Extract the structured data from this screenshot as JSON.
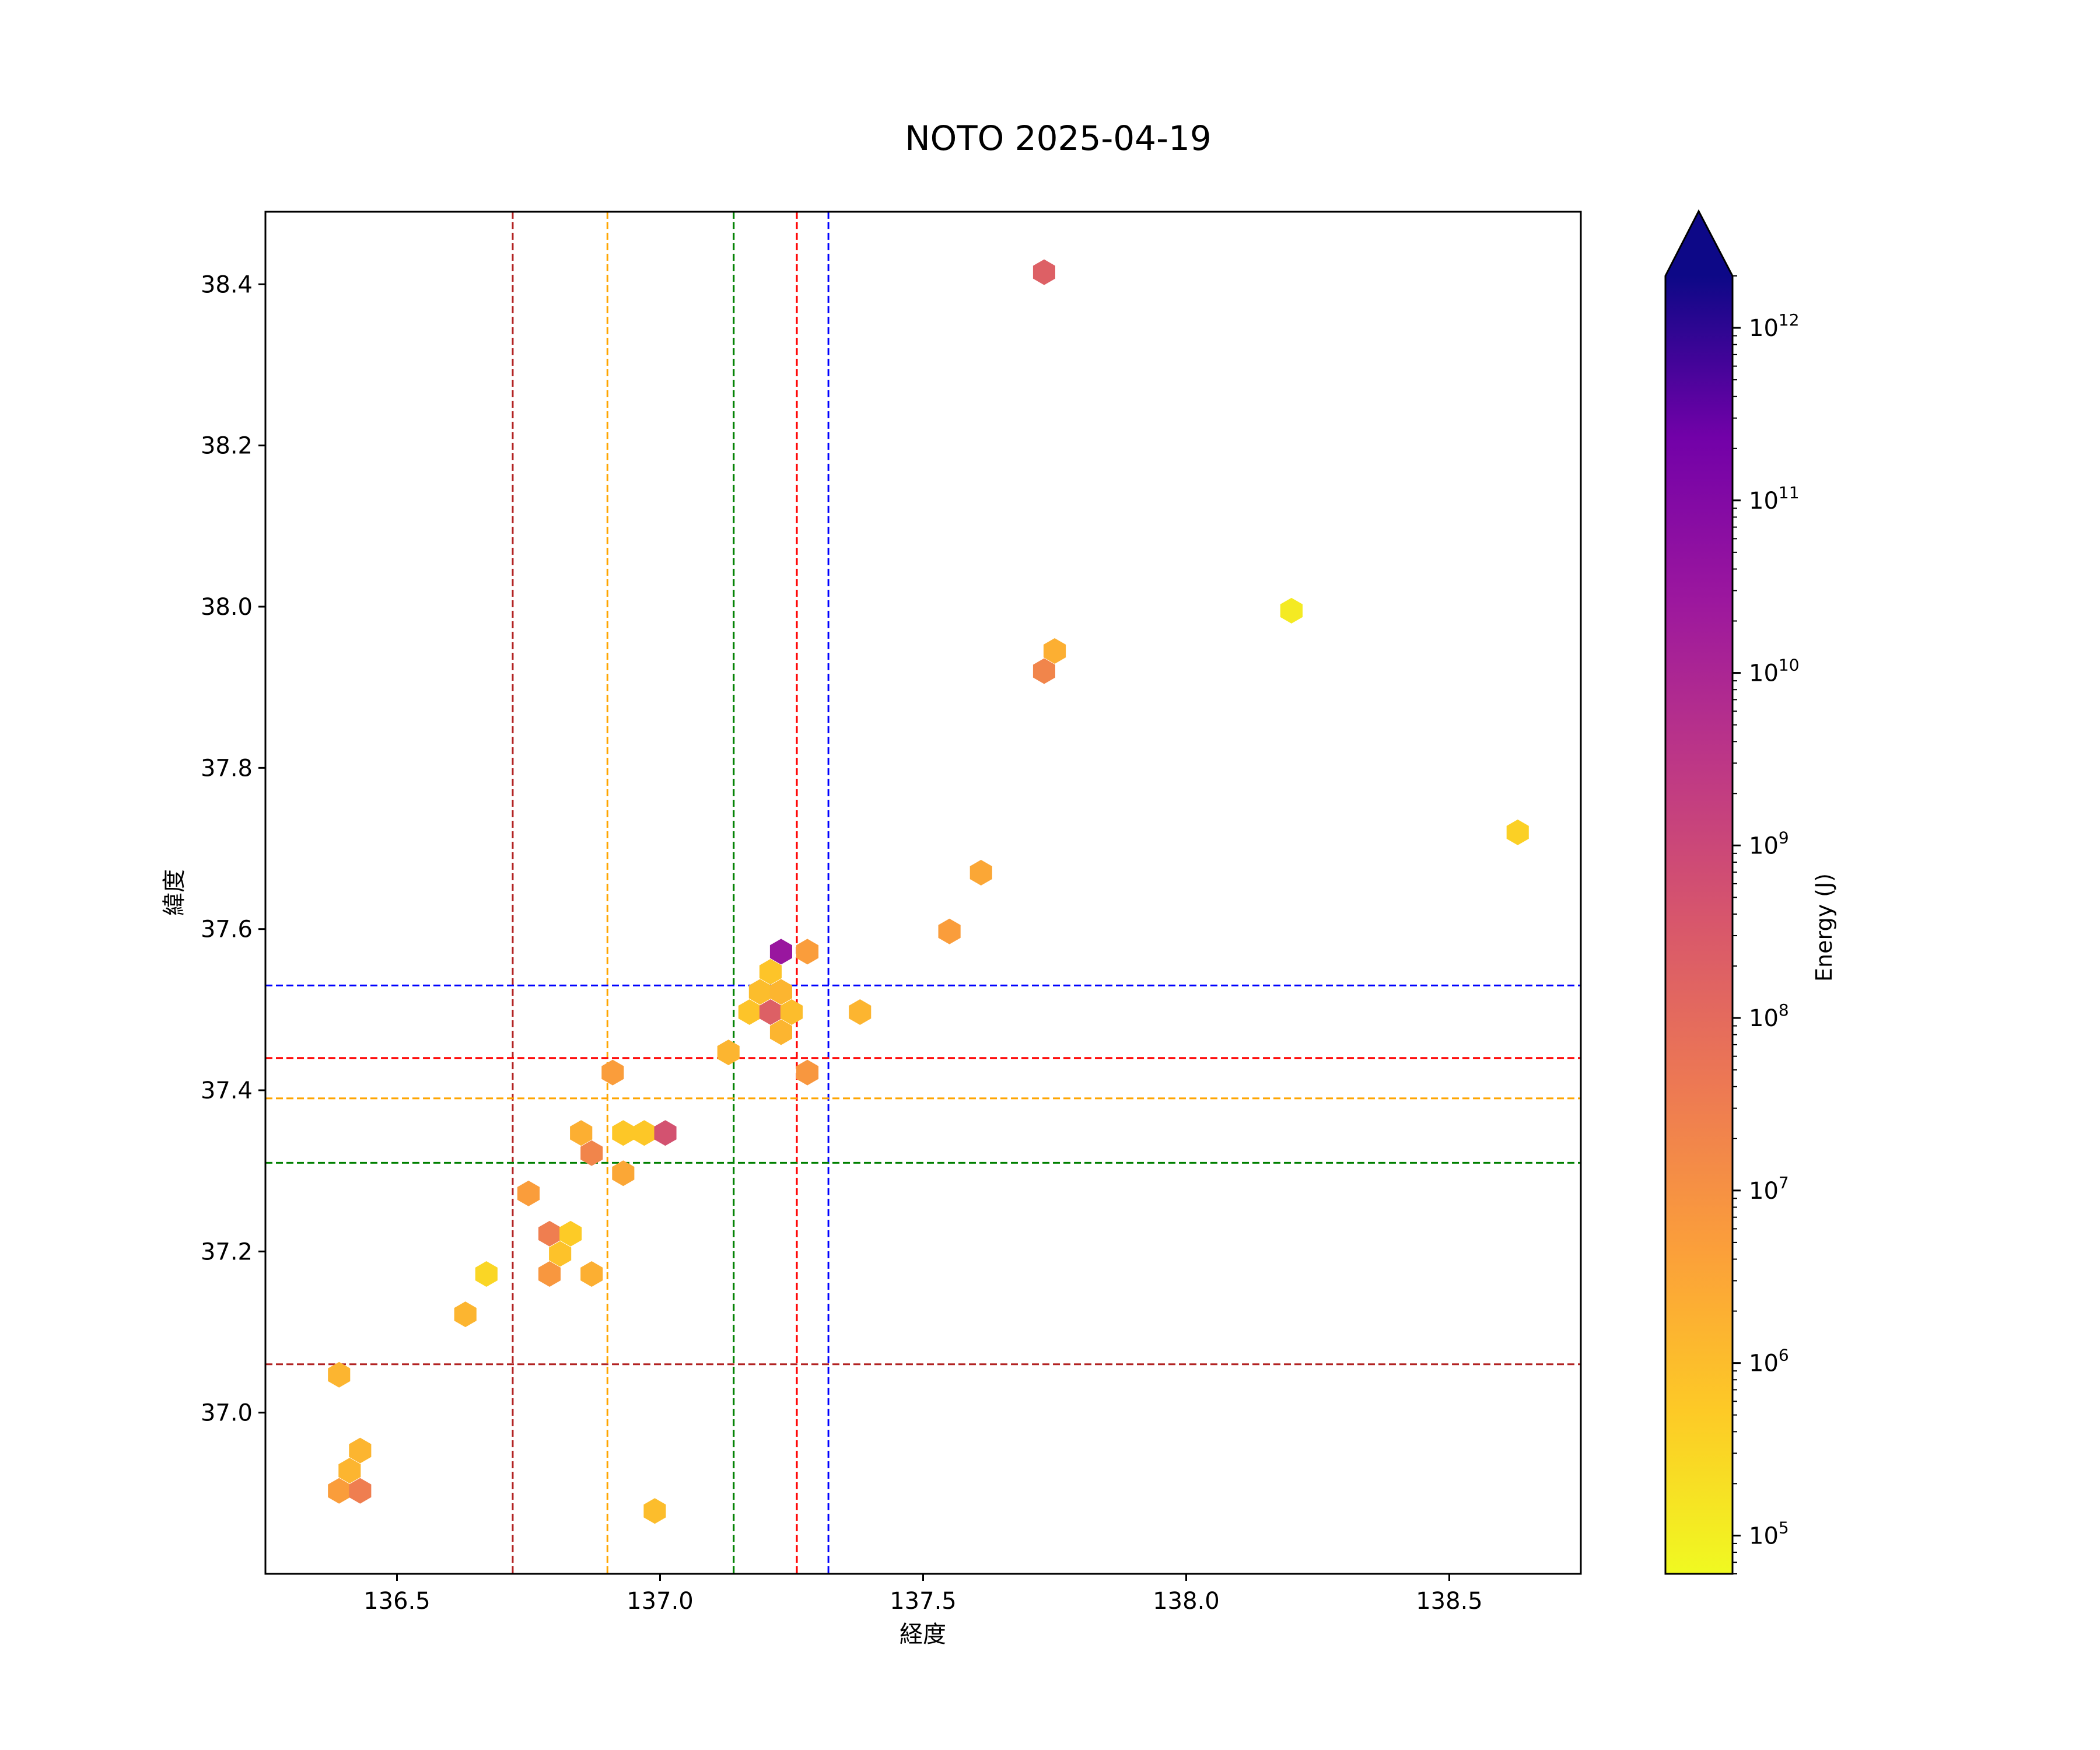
{
  "chart_data": {
    "type": "hexbin",
    "title": "NOTO 2025-04-19",
    "xlabel": "経度",
    "ylabel": "緯度",
    "xlim": [
      136.25,
      138.75
    ],
    "ylim": [
      36.8,
      38.49
    ],
    "xticks": [
      136.5,
      137.0,
      137.5,
      138.0,
      138.5
    ],
    "xtick_labels": [
      "136.5",
      "137.0",
      "137.5",
      "138.0",
      "138.5"
    ],
    "yticks": [
      37.0,
      37.2,
      37.4,
      37.6,
      37.8,
      38.0,
      38.2,
      38.4
    ],
    "ytick_labels": [
      "37.0",
      "37.2",
      "37.4",
      "37.6",
      "37.8",
      "38.0",
      "38.2",
      "38.4"
    ],
    "colorbar": {
      "label": "Energy (J)",
      "scale": "log",
      "min": 60000,
      "max": 2000000000000,
      "extend": "max",
      "colormap": "plasma_r",
      "ticks": [
        {
          "value": 100000,
          "base": "10",
          "exp": "5"
        },
        {
          "value": 1000000,
          "base": "10",
          "exp": "6"
        },
        {
          "value": 10000000,
          "base": "10",
          "exp": "7"
        },
        {
          "value": 100000000,
          "base": "10",
          "exp": "8"
        },
        {
          "value": 1000000000,
          "base": "10",
          "exp": "9"
        },
        {
          "value": 10000000000,
          "base": "10",
          "exp": "10"
        },
        {
          "value": 100000000000,
          "base": "10",
          "exp": "11"
        },
        {
          "value": 1000000000000,
          "base": "10",
          "exp": "12"
        }
      ]
    },
    "vlines": [
      {
        "x": 136.72,
        "color": "#b22222"
      },
      {
        "x": 136.9,
        "color": "#ffa500"
      },
      {
        "x": 137.14,
        "color": "#008000"
      },
      {
        "x": 137.26,
        "color": "#ff0000"
      },
      {
        "x": 137.32,
        "color": "#0000ff"
      }
    ],
    "hlines": [
      {
        "y": 37.53,
        "color": "#0000ff"
      },
      {
        "y": 37.44,
        "color": "#ff0000"
      },
      {
        "y": 37.39,
        "color": "#ffa500"
      },
      {
        "y": 37.31,
        "color": "#008000"
      },
      {
        "y": 37.06,
        "color": "#b22222"
      }
    ],
    "points": [
      {
        "x": 137.73,
        "y": 38.415,
        "energy": 200000000
      },
      {
        "x": 138.2,
        "y": 37.995,
        "energy": 120000
      },
      {
        "x": 137.75,
        "y": 37.945,
        "energy": 2000000
      },
      {
        "x": 137.73,
        "y": 37.92,
        "energy": 20000000
      },
      {
        "x": 138.63,
        "y": 37.72,
        "energy": 400000
      },
      {
        "x": 137.61,
        "y": 37.67,
        "energy": 3000000
      },
      {
        "x": 137.55,
        "y": 37.597,
        "energy": 5000000
      },
      {
        "x": 137.23,
        "y": 37.572,
        "energy": 30000000000
      },
      {
        "x": 137.28,
        "y": 37.572,
        "energy": 5000000
      },
      {
        "x": 137.21,
        "y": 37.547,
        "energy": 700000
      },
      {
        "x": 137.19,
        "y": 37.522,
        "energy": 1000000
      },
      {
        "x": 137.23,
        "y": 37.522,
        "energy": 1500000
      },
      {
        "x": 137.17,
        "y": 37.497,
        "energy": 700000
      },
      {
        "x": 137.21,
        "y": 37.497,
        "energy": 200000000
      },
      {
        "x": 137.25,
        "y": 37.497,
        "energy": 1000000
      },
      {
        "x": 137.38,
        "y": 37.497,
        "energy": 1500000
      },
      {
        "x": 137.23,
        "y": 37.472,
        "energy": 1500000
      },
      {
        "x": 137.13,
        "y": 37.447,
        "energy": 1500000
      },
      {
        "x": 136.91,
        "y": 37.422,
        "energy": 5000000
      },
      {
        "x": 137.28,
        "y": 37.422,
        "energy": 7000000
      },
      {
        "x": 136.85,
        "y": 37.347,
        "energy": 2000000
      },
      {
        "x": 136.93,
        "y": 37.347,
        "energy": 600000
      },
      {
        "x": 136.97,
        "y": 37.347,
        "energy": 600000
      },
      {
        "x": 137.01,
        "y": 37.347,
        "energy": 500000000
      },
      {
        "x": 136.87,
        "y": 37.322,
        "energy": 20000000
      },
      {
        "x": 136.93,
        "y": 37.297,
        "energy": 3000000
      },
      {
        "x": 136.75,
        "y": 37.272,
        "energy": 5000000
      },
      {
        "x": 136.79,
        "y": 37.222,
        "energy": 30000000
      },
      {
        "x": 136.83,
        "y": 37.222,
        "energy": 500000
      },
      {
        "x": 136.81,
        "y": 37.197,
        "energy": 800000
      },
      {
        "x": 136.67,
        "y": 37.172,
        "energy": 300000
      },
      {
        "x": 136.79,
        "y": 37.172,
        "energy": 7000000
      },
      {
        "x": 136.87,
        "y": 37.172,
        "energy": 2000000
      },
      {
        "x": 136.63,
        "y": 37.122,
        "energy": 1500000
      },
      {
        "x": 136.39,
        "y": 37.047,
        "energy": 1500000
      },
      {
        "x": 136.43,
        "y": 36.953,
        "energy": 1500000
      },
      {
        "x": 136.41,
        "y": 36.928,
        "energy": 1500000
      },
      {
        "x": 136.39,
        "y": 36.903,
        "energy": 5000000
      },
      {
        "x": 136.43,
        "y": 36.903,
        "energy": 30000000
      },
      {
        "x": 136.99,
        "y": 36.878,
        "energy": 1000000
      }
    ]
  }
}
